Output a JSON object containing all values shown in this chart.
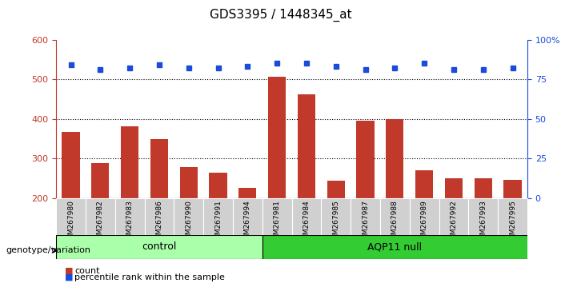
{
  "title": "GDS3395 / 1448345_at",
  "categories": [
    "GSM267980",
    "GSM267982",
    "GSM267983",
    "GSM267986",
    "GSM267990",
    "GSM267991",
    "GSM267994",
    "GSM267981",
    "GSM267984",
    "GSM267985",
    "GSM267987",
    "GSM267988",
    "GSM267989",
    "GSM267992",
    "GSM267993",
    "GSM267995"
  ],
  "bar_values": [
    368,
    288,
    382,
    348,
    278,
    265,
    225,
    507,
    462,
    243,
    395,
    400,
    270,
    250,
    250,
    246
  ],
  "percentile_values": [
    84,
    81,
    82,
    84,
    82,
    82,
    83,
    85,
    85,
    83,
    81,
    82,
    85,
    81,
    81,
    82
  ],
  "bar_color": "#c0392b",
  "dot_color": "#1a4bdb",
  "ylim_left": [
    200,
    600
  ],
  "ylim_right": [
    0,
    100
  ],
  "yticks_left": [
    200,
    300,
    400,
    500,
    600
  ],
  "yticks_right": [
    0,
    25,
    50,
    75,
    100
  ],
  "ytick_labels_right": [
    "0",
    "25",
    "50",
    "75",
    "100%"
  ],
  "grid_lines": [
    300,
    400,
    500
  ],
  "control_count": 7,
  "control_label": "control",
  "aqp_label": "AQP11 null",
  "genotype_label": "genotype/variation",
  "legend_count_label": "count",
  "legend_pct_label": "percentile rank within the sample",
  "control_color": "#aaffaa",
  "aqp_color": "#33cc33",
  "bar_width": 0.6
}
